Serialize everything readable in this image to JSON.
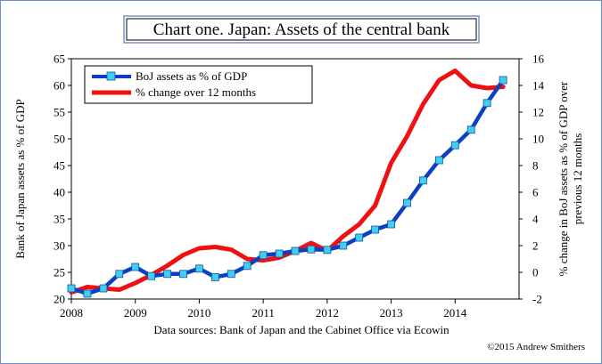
{
  "chart_data": {
    "type": "line",
    "title": "Chart one. Japan: Assets of the central bank",
    "ylabel_left": "Bank of Japan assets as % of GDP",
    "ylabel_right_line1": "% change in BoJ assets as % of GDP over",
    "ylabel_right_line2": "previous 12 months",
    "source": "Data sources: Bank of Japan and the Cabinet Office via Ecowin",
    "copyright": "©2015 Andrew Smithers",
    "x_ticks": [
      "2008",
      "2009",
      "2010",
      "2011",
      "2012",
      "2013",
      "2014"
    ],
    "xlim": [
      2008,
      2015
    ],
    "ylim_left": [
      20,
      65
    ],
    "ylim_right": [
      -2,
      16
    ],
    "yticks_left": [
      20,
      25,
      30,
      35,
      40,
      45,
      50,
      55,
      60,
      65
    ],
    "yticks_right": [
      -2,
      0,
      2,
      4,
      6,
      8,
      10,
      12,
      14,
      16
    ],
    "legend_position": "top-left",
    "series": [
      {
        "name": "BoJ assets as % of GDP",
        "axis": "left",
        "color": "#0b3fc4",
        "marker_color": "#3fd0f0",
        "x": [
          2008.0,
          2008.25,
          2008.5,
          2008.75,
          2009.0,
          2009.25,
          2009.5,
          2009.75,
          2010.0,
          2010.25,
          2010.5,
          2010.75,
          2011.0,
          2011.25,
          2011.5,
          2011.75,
          2012.0,
          2012.25,
          2012.5,
          2012.75,
          2013.0,
          2013.25,
          2013.5,
          2013.75,
          2014.0,
          2014.25,
          2014.5,
          2014.75
        ],
        "values": [
          22.0,
          21.0,
          22.0,
          24.7,
          26.0,
          24.3,
          24.7,
          24.7,
          25.7,
          24.1,
          24.7,
          26.2,
          28.2,
          28.5,
          29.0,
          29.3,
          29.2,
          30.0,
          31.5,
          33.0,
          34.0,
          38.0,
          42.2,
          46.0,
          48.8,
          51.7,
          56.7,
          61.0
        ]
      },
      {
        "name": "% change over 12 months",
        "axis": "right",
        "color": "#ee1111",
        "x": [
          2008.0,
          2008.25,
          2008.5,
          2008.75,
          2009.0,
          2009.25,
          2009.5,
          2009.75,
          2010.0,
          2010.25,
          2010.5,
          2010.75,
          2011.0,
          2011.25,
          2011.5,
          2011.75,
          2012.0,
          2012.25,
          2012.5,
          2012.75,
          2013.0,
          2013.25,
          2013.5,
          2013.75,
          2014.0,
          2014.25,
          2014.5,
          2014.75
        ],
        "values": [
          -1.5,
          -1.1,
          -1.2,
          -1.3,
          -0.8,
          -0.2,
          0.5,
          1.3,
          1.8,
          1.9,
          1.7,
          1.0,
          0.9,
          1.1,
          1.6,
          2.2,
          1.6,
          2.7,
          3.6,
          5.0,
          8.2,
          10.2,
          12.6,
          14.4,
          15.1,
          14.0,
          13.8,
          13.9
        ]
      }
    ]
  }
}
